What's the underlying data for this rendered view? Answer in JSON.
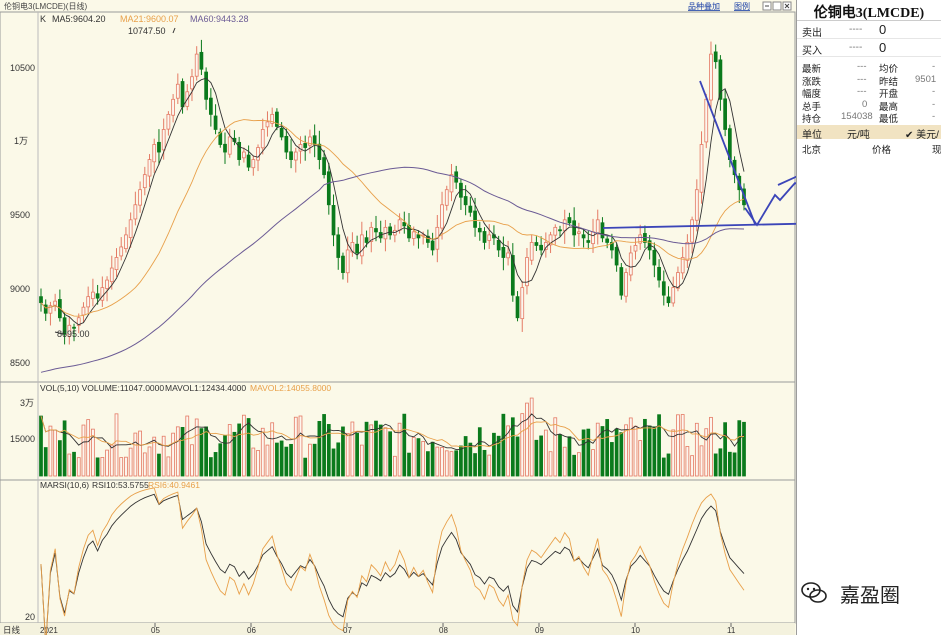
{
  "main": {
    "title": "伦铜电3(LMCDE)(日线)",
    "k_label": "K",
    "ma_labels": [
      {
        "text": "MA5:9604.20",
        "color": "#333333"
      },
      {
        "text": "MA21:9600.07",
        "color": "#e8a04a"
      },
      {
        "text": "MA60:9443.28",
        "color": "#6b5b95"
      }
    ],
    "high_label": "10747.50",
    "low_label": "8695.00",
    "y_ticks": [
      "10500",
      "1万",
      "9500",
      "9000",
      "8500"
    ]
  },
  "volume": {
    "ind_labels": [
      {
        "text": "VOL(5,10) VOLUME:11047.0000",
        "color": "#333333"
      },
      {
        "text": "MAVOL1:12434.4000",
        "color": "#333333"
      },
      {
        "text": "MAVOL2:14055.8000",
        "color": "#e8a04a"
      }
    ],
    "y_ticks": [
      "3万",
      "15000"
    ]
  },
  "rsi": {
    "ind_labels": [
      {
        "text": "MARSI(10,6)",
        "color": "#333333"
      },
      {
        "text": "RSI10:53.5755",
        "color": "#333333"
      },
      {
        "text": "RSI6:40.9461",
        "color": "#e8a04a"
      }
    ],
    "y_ticks": [
      "20"
    ]
  },
  "x_axis": {
    "period_label": "日线",
    "start": "2021",
    "months": [
      "05",
      "06",
      "07",
      "08",
      "09",
      "10",
      "11"
    ]
  },
  "toolbar": {
    "items_add": "品种叠加",
    "legend": "图例"
  },
  "right_panel": {
    "title": "伦铜电3(LMCDE)",
    "sell_label": "卖出",
    "sell_dash": "----",
    "sell_val": "0",
    "buy_label": "买入",
    "buy_dash": "----",
    "buy_val": "0",
    "quote_rows": [
      {
        "l1": "最新",
        "v1": "---",
        "l2": "均价",
        "v2": "-"
      },
      {
        "l1": "涨跌",
        "v1": "---",
        "l2": "昨结",
        "v2": "9501"
      },
      {
        "l1": "幅度",
        "v1": "---",
        "l2": "开盘",
        "v2": "-"
      },
      {
        "l1": "总手",
        "v1": "0",
        "l2": "最高",
        "v2": "-"
      },
      {
        "l1": "持仓",
        "v1": "154038",
        "l2": "最低",
        "v2": "-"
      }
    ],
    "unit_label": "单位",
    "unit_value": "元/吨",
    "usd_label": "✔ 美元/",
    "location": "北京",
    "price_label": "价格",
    "extra": "现"
  },
  "watermark": "嘉盈圈",
  "colors": {
    "up": "#e47a64",
    "down": "#0b7a1c",
    "ma5": "#333333",
    "ma21": "#e8a04a",
    "ma60": "#6b5b95",
    "annotation": "#3b45b8",
    "background": "#fbf9e8"
  },
  "chart_data": {
    "type": "candlestick",
    "title": "伦铜电3(LMCDE)(日线)",
    "period": "daily",
    "x_range": [
      "2021-04",
      "2021-11"
    ],
    "ylim": [
      8450,
      10800
    ],
    "ma_current": {
      "MA5": 9604.2,
      "MA21": 9600.07,
      "MA60": 9443.28
    },
    "high_marker": 10747.5,
    "low_marker": 8695.0,
    "close": [
      8950,
      8880,
      8930,
      8960,
      8850,
      8740,
      8800,
      8780,
      8850,
      8920,
      8990,
      9020,
      8980,
      9050,
      9100,
      9180,
      9250,
      9320,
      9400,
      9500,
      9600,
      9700,
      9800,
      9900,
      10000,
      9950,
      10100,
      10200,
      10300,
      10400,
      10250,
      10350,
      10450,
      10600,
      10500,
      10300,
      10200,
      10100,
      10000,
      9950,
      10050,
      10020,
      9900,
      9950,
      9850,
      9900,
      9980,
      10100,
      10150,
      10200,
      10120,
      10050,
      9950,
      9900,
      9950,
      10000,
      9980,
      10050,
      10000,
      9900,
      9800,
      9600,
      9400,
      9250,
      9150,
      9300,
      9350,
      9280,
      9400,
      9350,
      9450,
      9420,
      9380,
      9450,
      9400,
      9430,
      9500,
      9460,
      9380,
      9420,
      9380,
      9400,
      9350,
      9300,
      9450,
      9600,
      9700,
      9800,
      9750,
      9650,
      9600,
      9550,
      9450,
      9420,
      9350,
      9400,
      9380,
      9300,
      9250,
      9280,
      9000,
      8850,
      9050,
      9250,
      9350,
      9330,
      9300,
      9350,
      9400,
      9450,
      9430,
      9500,
      9480,
      9400,
      9420,
      9380,
      9350,
      9420,
      9500,
      9380,
      9350,
      9300,
      9200,
      9000,
      9150,
      9280,
      9330,
      9400,
      9350,
      9300,
      9200,
      9100,
      9000,
      8950,
      9050,
      9150,
      9250,
      9350,
      9500,
      9700,
      10000,
      10300,
      10600,
      10550,
      10300,
      10100,
      9900,
      9800,
      9700,
      9600
    ],
    "volume_ylim": [
      0,
      36000
    ],
    "volume_current": {
      "VOLUME": 11047,
      "MAVOL1": 12434.4,
      "MAVOL2": 14055.8
    },
    "rsi_current": {
      "RSI10": 53.5755,
      "RSI6": 40.9461
    },
    "rsi_ylim": [
      15,
      95
    ]
  }
}
